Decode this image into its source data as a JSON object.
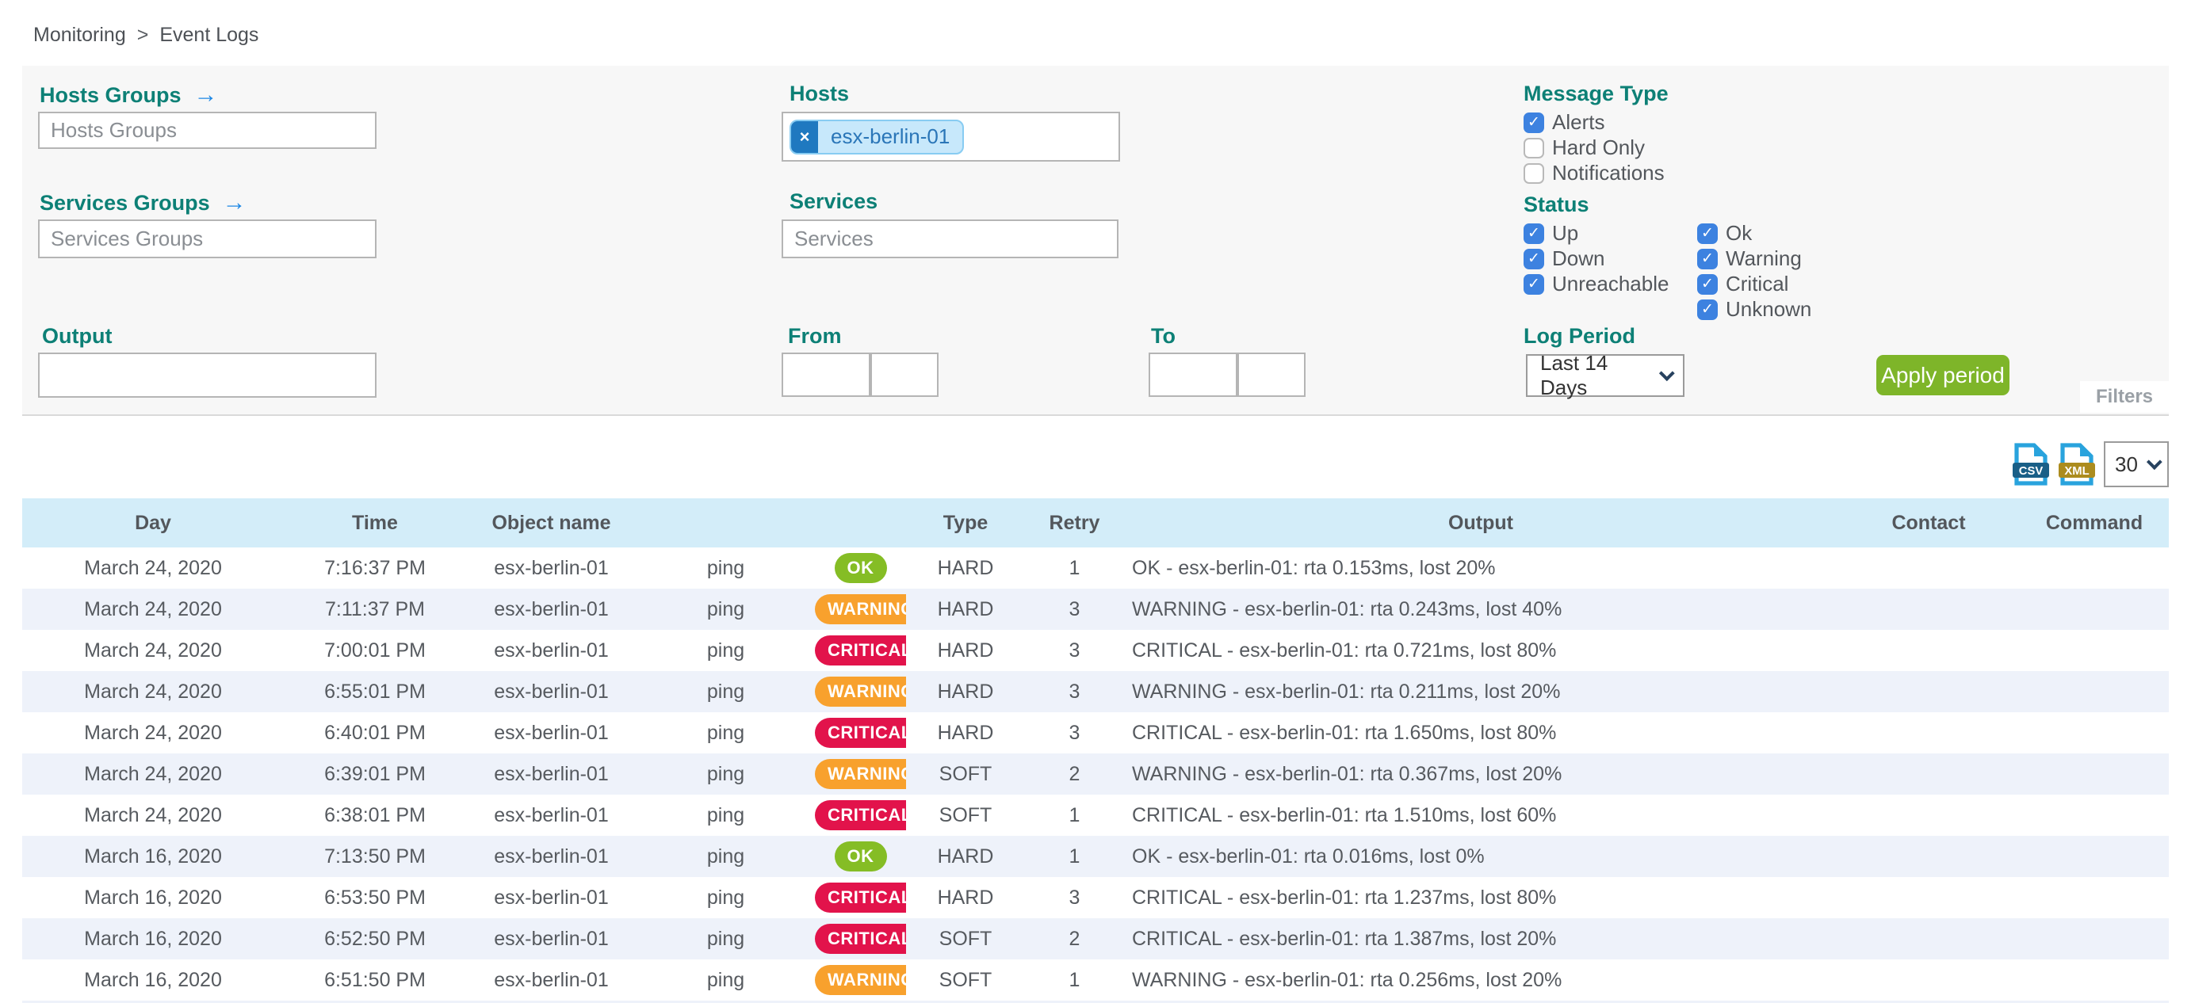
{
  "breadcrumb": {
    "items": [
      "Monitoring",
      "Event Logs"
    ],
    "separator": ">"
  },
  "filters": {
    "hosts_groups": {
      "label": "Hosts Groups",
      "placeholder": "Hosts Groups",
      "value": ""
    },
    "services_groups": {
      "label": "Services Groups",
      "placeholder": "Services Groups",
      "value": ""
    },
    "hosts": {
      "label": "Hosts",
      "selected_tag": "esx-berlin-01",
      "remove_glyph": "×"
    },
    "services": {
      "label": "Services",
      "placeholder": "Services",
      "value": ""
    },
    "output": {
      "label": "Output",
      "value": ""
    },
    "from": {
      "label": "From",
      "date_value": "",
      "time_value": ""
    },
    "to": {
      "label": "To",
      "date_value": "",
      "time_value": ""
    },
    "message_type": {
      "label": "Message Type",
      "options": [
        {
          "label": "Alerts",
          "checked": true
        },
        {
          "label": "Hard Only",
          "checked": false
        },
        {
          "label": "Notifications",
          "checked": false
        }
      ]
    },
    "status": {
      "label": "Status",
      "host_options": [
        {
          "label": "Up",
          "checked": true
        },
        {
          "label": "Down",
          "checked": true
        },
        {
          "label": "Unreachable",
          "checked": true
        }
      ],
      "service_options": [
        {
          "label": "Ok",
          "checked": true
        },
        {
          "label": "Warning",
          "checked": true
        },
        {
          "label": "Critical",
          "checked": true
        },
        {
          "label": "Unknown",
          "checked": true
        }
      ]
    },
    "log_period": {
      "label": "Log Period",
      "selected": "Last 14 Days"
    },
    "apply_button": "Apply period",
    "filters_tab": "Filters"
  },
  "export": {
    "csv_label": "CSV",
    "xml_label": "XML",
    "page_size": "30"
  },
  "table": {
    "headers": [
      "Day",
      "Time",
      "Object name",
      "",
      "",
      "Type",
      "Retry",
      "Output",
      "Contact",
      "Command"
    ],
    "rows": [
      {
        "day": "March 24, 2020",
        "time": "7:16:37 PM",
        "object": "esx-berlin-01",
        "service": "ping",
        "status": "OK",
        "type": "HARD",
        "retry": "1",
        "output": "OK - esx-berlin-01: rta 0.153ms, lost 20%",
        "contact": "",
        "command": ""
      },
      {
        "day": "March 24, 2020",
        "time": "7:11:37 PM",
        "object": "esx-berlin-01",
        "service": "ping",
        "status": "WARNING",
        "type": "HARD",
        "retry": "3",
        "output": "WARNING - esx-berlin-01: rta 0.243ms, lost 40%",
        "contact": "",
        "command": ""
      },
      {
        "day": "March 24, 2020",
        "time": "7:00:01 PM",
        "object": "esx-berlin-01",
        "service": "ping",
        "status": "CRITICAL",
        "type": "HARD",
        "retry": "3",
        "output": "CRITICAL - esx-berlin-01: rta 0.721ms, lost 80%",
        "contact": "",
        "command": ""
      },
      {
        "day": "March 24, 2020",
        "time": "6:55:01 PM",
        "object": "esx-berlin-01",
        "service": "ping",
        "status": "WARNING",
        "type": "HARD",
        "retry": "3",
        "output": "WARNING - esx-berlin-01: rta 0.211ms, lost 20%",
        "contact": "",
        "command": ""
      },
      {
        "day": "March 24, 2020",
        "time": "6:40:01 PM",
        "object": "esx-berlin-01",
        "service": "ping",
        "status": "CRITICAL",
        "type": "HARD",
        "retry": "3",
        "output": "CRITICAL - esx-berlin-01: rta 1.650ms, lost 80%",
        "contact": "",
        "command": ""
      },
      {
        "day": "March 24, 2020",
        "time": "6:39:01 PM",
        "object": "esx-berlin-01",
        "service": "ping",
        "status": "WARNING",
        "type": "SOFT",
        "retry": "2",
        "output": "WARNING - esx-berlin-01: rta 0.367ms, lost 20%",
        "contact": "",
        "command": ""
      },
      {
        "day": "March 24, 2020",
        "time": "6:38:01 PM",
        "object": "esx-berlin-01",
        "service": "ping",
        "status": "CRITICAL",
        "type": "SOFT",
        "retry": "1",
        "output": "CRITICAL - esx-berlin-01: rta 1.510ms, lost 60%",
        "contact": "",
        "command": ""
      },
      {
        "day": "March 16, 2020",
        "time": "7:13:50 PM",
        "object": "esx-berlin-01",
        "service": "ping",
        "status": "OK",
        "type": "HARD",
        "retry": "1",
        "output": "OK - esx-berlin-01: rta 0.016ms, lost 0%",
        "contact": "",
        "command": ""
      },
      {
        "day": "March 16, 2020",
        "time": "6:53:50 PM",
        "object": "esx-berlin-01",
        "service": "ping",
        "status": "CRITICAL",
        "type": "HARD",
        "retry": "3",
        "output": "CRITICAL - esx-berlin-01: rta 1.237ms, lost 80%",
        "contact": "",
        "command": ""
      },
      {
        "day": "March 16, 2020",
        "time": "6:52:50 PM",
        "object": "esx-berlin-01",
        "service": "ping",
        "status": "CRITICAL",
        "type": "SOFT",
        "retry": "2",
        "output": "CRITICAL - esx-berlin-01: rta 1.387ms, lost 20%",
        "contact": "",
        "command": ""
      },
      {
        "day": "March 16, 2020",
        "time": "6:51:50 PM",
        "object": "esx-berlin-01",
        "service": "ping",
        "status": "WARNING",
        "type": "SOFT",
        "retry": "1",
        "output": "WARNING - esx-berlin-01: rta 0.256ms, lost 20%",
        "contact": "",
        "command": ""
      }
    ]
  },
  "colors": {
    "label_teal": "#0d8076",
    "checkbox_blue": "#3d82e0",
    "apply_green": "#7eb529",
    "header_blue": "#d3edf9",
    "row_alt": "#eef2fa",
    "badge_ok": "#85bd25",
    "badge_warning": "#f8a12d",
    "badge_critical": "#e2134b",
    "chip_bg": "#c7e8fb",
    "chip_text": "#2a76b8"
  }
}
